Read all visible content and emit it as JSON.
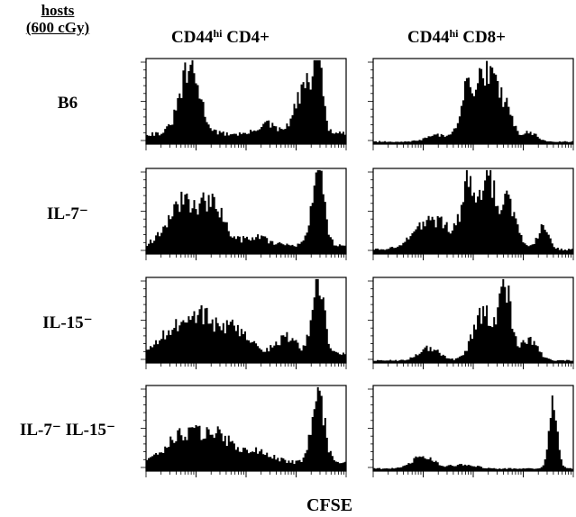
{
  "hosts_title_line1": "hosts",
  "hosts_title_line2": "(600 cGy)",
  "chart_data": {
    "type": "area",
    "title": "",
    "xlabel": "CFSE",
    "ylabel": "",
    "grid": false,
    "x_scale": "log (CFSE intensity, decreasing division number to the right)",
    "columns": [
      {
        "id": "cd4",
        "text": "CD44",
        "sup": "hi",
        "tail": " CD4+"
      },
      {
        "id": "cd8",
        "text": "CD44",
        "sup": "hi",
        "tail": " CD8+"
      }
    ],
    "rows": [
      {
        "id": "b6",
        "label": "B6"
      },
      {
        "id": "il7",
        "label": "IL-7⁻"
      },
      {
        "id": "il15",
        "label": "IL-15⁻"
      },
      {
        "id": "il7il15",
        "label": "IL-7⁻ IL-15⁻"
      }
    ],
    "histograms": [
      {
        "row": "B6",
        "column": "CD44hi CD4+",
        "peaks": [
          [
            0.22,
            0.75,
            0.05
          ],
          [
            0.6,
            0.12,
            0.04
          ],
          [
            0.8,
            0.55,
            0.05
          ],
          [
            0.86,
            0.85,
            0.02
          ]
        ],
        "baseline": 0.12
      },
      {
        "row": "B6",
        "column": "CD44hi CD8+",
        "peaks": [
          [
            0.32,
            0.08,
            0.05
          ],
          [
            0.48,
            0.65,
            0.04
          ],
          [
            0.57,
            0.75,
            0.035
          ],
          [
            0.65,
            0.45,
            0.04
          ],
          [
            0.78,
            0.1,
            0.04
          ]
        ],
        "baseline": 0.03
      },
      {
        "row": "IL-7⁻",
        "column": "CD44hi CD4+",
        "peaks": [
          [
            0.18,
            0.5,
            0.07
          ],
          [
            0.33,
            0.45,
            0.06
          ],
          [
            0.55,
            0.1,
            0.06
          ],
          [
            0.86,
            0.85,
            0.03
          ]
        ],
        "baseline": 0.1
      },
      {
        "row": "IL-7⁻",
        "column": "CD44hi CD8+",
        "peaks": [
          [
            0.3,
            0.35,
            0.09
          ],
          [
            0.48,
            0.75,
            0.035
          ],
          [
            0.58,
            0.8,
            0.035
          ],
          [
            0.68,
            0.55,
            0.04
          ],
          [
            0.85,
            0.25,
            0.03
          ]
        ],
        "baseline": 0.05
      },
      {
        "row": "IL-15⁻",
        "column": "CD44hi CD4+",
        "peaks": [
          [
            0.12,
            0.25,
            0.06
          ],
          [
            0.27,
            0.45,
            0.07
          ],
          [
            0.45,
            0.3,
            0.07
          ],
          [
            0.7,
            0.2,
            0.05
          ],
          [
            0.86,
            0.85,
            0.03
          ]
        ],
        "baseline": 0.1
      },
      {
        "row": "IL-15⁻",
        "column": "CD44hi CD8+",
        "peaks": [
          [
            0.28,
            0.15,
            0.05
          ],
          [
            0.55,
            0.55,
            0.05
          ],
          [
            0.66,
            0.85,
            0.03
          ],
          [
            0.78,
            0.25,
            0.04
          ]
        ],
        "baseline": 0.03
      },
      {
        "row": "IL-7⁻ IL-15⁻",
        "column": "CD44hi CD4+",
        "peaks": [
          [
            0.18,
            0.3,
            0.08
          ],
          [
            0.35,
            0.3,
            0.08
          ],
          [
            0.55,
            0.12,
            0.08
          ],
          [
            0.86,
            0.85,
            0.03
          ]
        ],
        "baseline": 0.1
      },
      {
        "row": "IL-7⁻ IL-15⁻",
        "column": "CD44hi CD8+",
        "peaks": [
          [
            0.25,
            0.15,
            0.05
          ],
          [
            0.45,
            0.05,
            0.06
          ],
          [
            0.9,
            0.9,
            0.02
          ]
        ],
        "baseline": 0.03
      }
    ]
  }
}
